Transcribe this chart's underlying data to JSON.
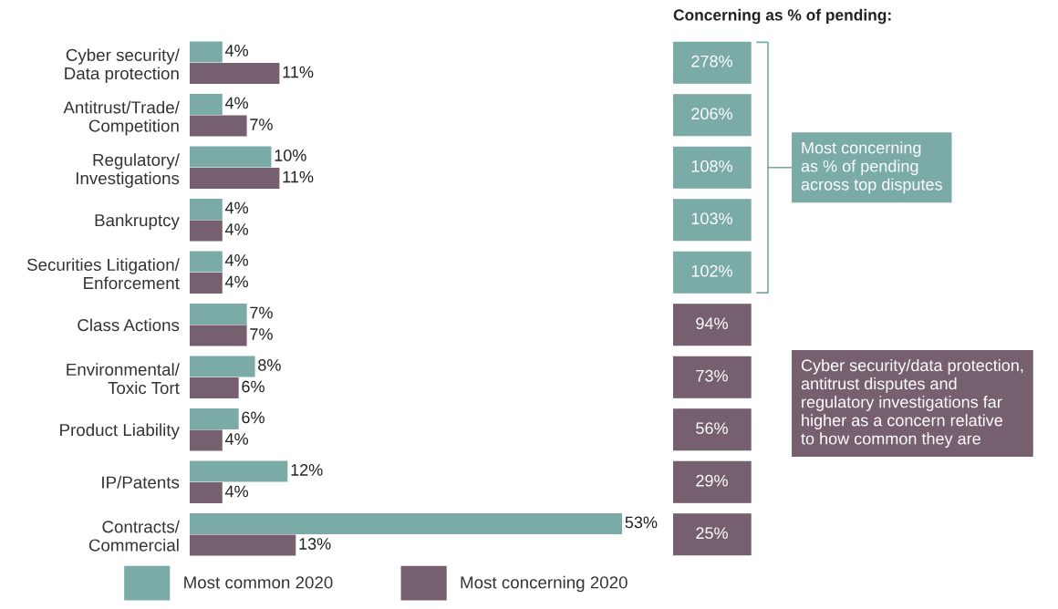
{
  "chart_data": [
    {
      "type": "bar",
      "orientation": "horizontal",
      "categories": [
        "Cyber security/\nData protection",
        "Antitrust/Trade/\nCompetition",
        "Regulatory/\nInvestigations",
        "Bankruptcy",
        "Securities Litigation/\nEnforcement",
        "Class Actions",
        "Environmental/\nToxic Tort",
        "Product Liability",
        "IP/Patents",
        "Contracts/\nCommercial"
      ],
      "series": [
        {
          "name": "Most common 2020",
          "color": "#7aaba7",
          "values": [
            4,
            4,
            10,
            4,
            4,
            7,
            8,
            6,
            12,
            53
          ],
          "value_labels": [
            "4%",
            "4%",
            "10%",
            "4%",
            "4%",
            "7%",
            "8%",
            "6%",
            "12%",
            "53%"
          ]
        },
        {
          "name": "Most concerning 2020",
          "color": "#76606f",
          "values": [
            11,
            7,
            11,
            4,
            4,
            7,
            6,
            4,
            4,
            13
          ],
          "value_labels": [
            "11%",
            "7%",
            "11%",
            "4%",
            "4%",
            "7%",
            "6%",
            "4%",
            "4%",
            "13%"
          ]
        }
      ],
      "legend": "bottom"
    },
    {
      "type": "other",
      "title": "Concerning as % of pending:",
      "value_labels": [
        "278%",
        "206%",
        "108%",
        "103%",
        "102%",
        "94%",
        "73%",
        "56%",
        "29%",
        "25%"
      ],
      "colors": [
        "#7aaba7",
        "#7aaba7",
        "#7aaba7",
        "#7aaba7",
        "#7aaba7",
        "#76606f",
        "#76606f",
        "#76606f",
        "#76606f",
        "#76606f"
      ],
      "annotations": [
        "Most concerning\nas % of pending\nacross top disputes",
        "Cyber security/data protection,\nantitrust disputes and\nregulatory investigations far\nhigher as a concern relative\nto how common they are"
      ]
    }
  ]
}
